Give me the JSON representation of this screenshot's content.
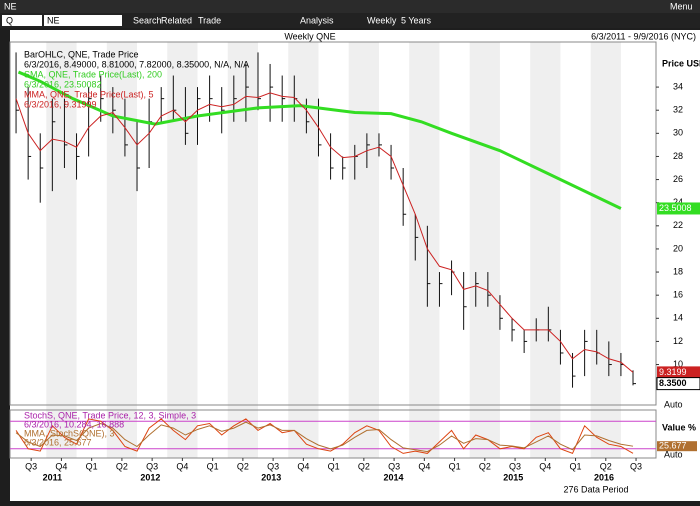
{
  "window": {
    "title": "NE",
    "menu": "Menu"
  },
  "toolbar": {
    "mode": "Q",
    "symbol": "NE",
    "search": "Search",
    "related": "Related",
    "trade": "Trade",
    "analysis": "Analysis",
    "period": "Weekly",
    "range": "5 Years"
  },
  "chart_data": {
    "type": "ohlc",
    "title": "Weekly QNE",
    "date_range": "6/3/2011 - 9/9/2016 (NYC)",
    "y_label": "Price USD",
    "legend_texts": [
      "BarOHLC, QNE, Trade Price",
      "6/3/2016, 8.49000, 8.81000, 7.82000, 8.35000, N/A, N/A",
      "SMA, QNE, Trade Price(Last), 200",
      "6/3/2016, 23.50082",
      "MMA, QNE, Trade Price(Last), 5",
      "6/3/2016, 9.31999"
    ],
    "x": [
      2011.5,
      2011.6,
      2011.7,
      2011.8,
      2011.9,
      2012.0,
      2012.1,
      2012.2,
      2012.3,
      2012.4,
      2012.5,
      2012.6,
      2012.7,
      2012.8,
      2012.9,
      2013.0,
      2013.1,
      2013.2,
      2013.3,
      2013.4,
      2013.5,
      2013.6,
      2013.7,
      2013.8,
      2013.9,
      2014.0,
      2014.1,
      2014.2,
      2014.3,
      2014.4,
      2014.5,
      2014.6,
      2014.7,
      2014.8,
      2014.9,
      2015.0,
      2015.1,
      2015.2,
      2015.3,
      2015.4,
      2015.5,
      2015.6,
      2015.7,
      2015.8,
      2015.9,
      2016.0,
      2016.1,
      2016.2,
      2016.3,
      2016.4,
      2016.5,
      2016.6
    ],
    "high": [
      37,
      34,
      30,
      33,
      33,
      30,
      34,
      35,
      34,
      33,
      31,
      33,
      34,
      35,
      34,
      34,
      35,
      34,
      35,
      36,
      37,
      36,
      35,
      35,
      33,
      33,
      30,
      28,
      29,
      30,
      30,
      29,
      27,
      23,
      22,
      18,
      19,
      18,
      18,
      18,
      16,
      14,
      13,
      14,
      15,
      13,
      11,
      13,
      13,
      12,
      11,
      9.5
    ],
    "low": [
      30,
      26,
      24,
      25,
      27,
      26,
      28,
      31,
      30,
      28,
      25,
      27,
      31,
      31,
      29,
      29,
      31,
      30,
      31,
      31,
      32,
      31,
      31,
      31,
      30,
      28,
      26,
      26,
      26,
      27,
      28,
      26,
      22,
      19,
      15,
      15,
      16,
      13,
      15,
      15,
      13,
      12,
      11,
      12,
      12,
      10,
      8,
      9,
      10,
      9,
      9,
      8.2
    ],
    "close": [
      32,
      28,
      27,
      31,
      29,
      28,
      33,
      33,
      32,
      29,
      27,
      31,
      33,
      32,
      30,
      33,
      33,
      32,
      33,
      34,
      33,
      34,
      33,
      33,
      31,
      29,
      27,
      27,
      28,
      29,
      29,
      27,
      23,
      21,
      17,
      17,
      18,
      15,
      17,
      16,
      14,
      13,
      12,
      13,
      13,
      11,
      9,
      12,
      11,
      10,
      10,
      8.35
    ],
    "bar_color": "#111111",
    "last_label": "8.3500",
    "series": [
      {
        "name": "SMA 200",
        "color": "#33dd22",
        "last_label": "23.5008",
        "x": [
          2011.52,
          2011.7,
          2011.97,
          2012.3,
          2012.65,
          2013.0,
          2013.5,
          2013.85,
          2014.15,
          2014.3,
          2014.6,
          2014.85,
          2015.1,
          2015.5,
          2015.9,
          2016.2,
          2016.5
        ],
        "values": [
          35.3,
          34.5,
          33,
          31.5,
          30.8,
          31.5,
          32.2,
          32.4,
          32,
          31.8,
          31.7,
          31,
          30,
          28.5,
          26.5,
          25,
          23.5
        ]
      },
      {
        "name": "MMA 5",
        "color": "#cc2222",
        "last_label": "9.3199",
        "values": [
          33,
          30,
          28.5,
          29.5,
          29.3,
          28.8,
          30.5,
          31.5,
          31.8,
          30.5,
          29,
          30,
          31.5,
          32,
          31,
          32,
          32.5,
          32.3,
          32.5,
          33.2,
          33.1,
          33.5,
          33.2,
          33.1,
          32,
          30.5,
          28.8,
          27.9,
          28,
          28.5,
          28.8,
          28,
          25.5,
          23,
          20,
          18.5,
          18.2,
          16.5,
          16.8,
          16.4,
          15.2,
          14,
          13,
          13,
          13,
          12,
          10.5,
          11.3,
          11.1,
          10.5,
          10.2,
          9.32
        ]
      }
    ],
    "xlim": [
      2011.45,
      2016.79
    ],
    "ylim": [
      6.5,
      37.9
    ],
    "yticks": [
      10,
      12,
      14,
      16,
      18,
      20,
      22,
      24,
      26,
      28,
      30,
      32,
      34
    ],
    "xticks": [
      {
        "value": 2011.625,
        "label": "Q3"
      },
      {
        "value": 2011.875,
        "label": "Q4"
      },
      {
        "value": 2012.125,
        "label": "Q1"
      },
      {
        "value": 2012.375,
        "label": "Q2"
      },
      {
        "value": 2012.625,
        "label": "Q3"
      },
      {
        "value": 2012.875,
        "label": "Q4"
      },
      {
        "value": 2013.125,
        "label": "Q1"
      },
      {
        "value": 2013.375,
        "label": "Q2"
      },
      {
        "value": 2013.625,
        "label": "Q3"
      },
      {
        "value": 2013.875,
        "label": "Q4"
      },
      {
        "value": 2014.125,
        "label": "Q1"
      },
      {
        "value": 2014.375,
        "label": "Q2"
      },
      {
        "value": 2014.625,
        "label": "Q3"
      },
      {
        "value": 2014.875,
        "label": "Q4"
      },
      {
        "value": 2015.125,
        "label": "Q1"
      },
      {
        "value": 2015.375,
        "label": "Q2"
      },
      {
        "value": 2015.625,
        "label": "Q3"
      },
      {
        "value": 2015.875,
        "label": "Q4"
      },
      {
        "value": 2016.125,
        "label": "Q1"
      },
      {
        "value": 2016.375,
        "label": "Q2"
      },
      {
        "value": 2016.625,
        "label": "Q3"
      }
    ],
    "year_labels": [
      {
        "value": 2011.8,
        "label": "2011"
      },
      {
        "value": 2012.61,
        "label": "2012"
      },
      {
        "value": 2013.61,
        "label": "2013"
      },
      {
        "value": 2014.62,
        "label": "2014"
      },
      {
        "value": 2015.61,
        "label": "2015"
      },
      {
        "value": 2016.36,
        "label": "2016"
      }
    ],
    "auto": "Auto",
    "data_period": "276 Data Period",
    "stoch": {
      "legend_texts": [
        "StochS, QNE, Trade Price, 12, 3, Simple, 3",
        "6/3/2016, 10.284, 16.888",
        "MMA, StochS(QNE), 3",
        "6/3/2016, 25.677"
      ],
      "y_label": "Value %",
      "ylim": [
        0,
        100
      ],
      "levels": [
        80,
        20
      ],
      "level_color": "#cc44cc",
      "auto": "Auto",
      "series": [
        {
          "name": "StochS",
          "color": "#dd4411",
          "values": [
            60,
            20,
            15,
            70,
            45,
            30,
            85,
            80,
            60,
            25,
            15,
            65,
            85,
            60,
            40,
            70,
            75,
            50,
            70,
            85,
            60,
            75,
            55,
            60,
            30,
            20,
            15,
            30,
            55,
            70,
            60,
            25,
            10,
            15,
            10,
            35,
            60,
            20,
            50,
            40,
            20,
            25,
            20,
            45,
            55,
            20,
            10,
            70,
            45,
            30,
            25,
            10.284
          ]
        },
        {
          "name": "MMA StochS",
          "color": "#b07030",
          "last_label": "25.677",
          "values": [
            55,
            35,
            25,
            50,
            48,
            38,
            65,
            75,
            65,
            40,
            25,
            50,
            72,
            65,
            50,
            62,
            70,
            58,
            65,
            78,
            65,
            72,
            60,
            60,
            42,
            28,
            20,
            28,
            45,
            60,
            62,
            40,
            22,
            18,
            14,
            28,
            48,
            32,
            42,
            40,
            28,
            26,
            22,
            35,
            48,
            30,
            18,
            50,
            48,
            38,
            30,
            25.677
          ]
        }
      ]
    }
  }
}
